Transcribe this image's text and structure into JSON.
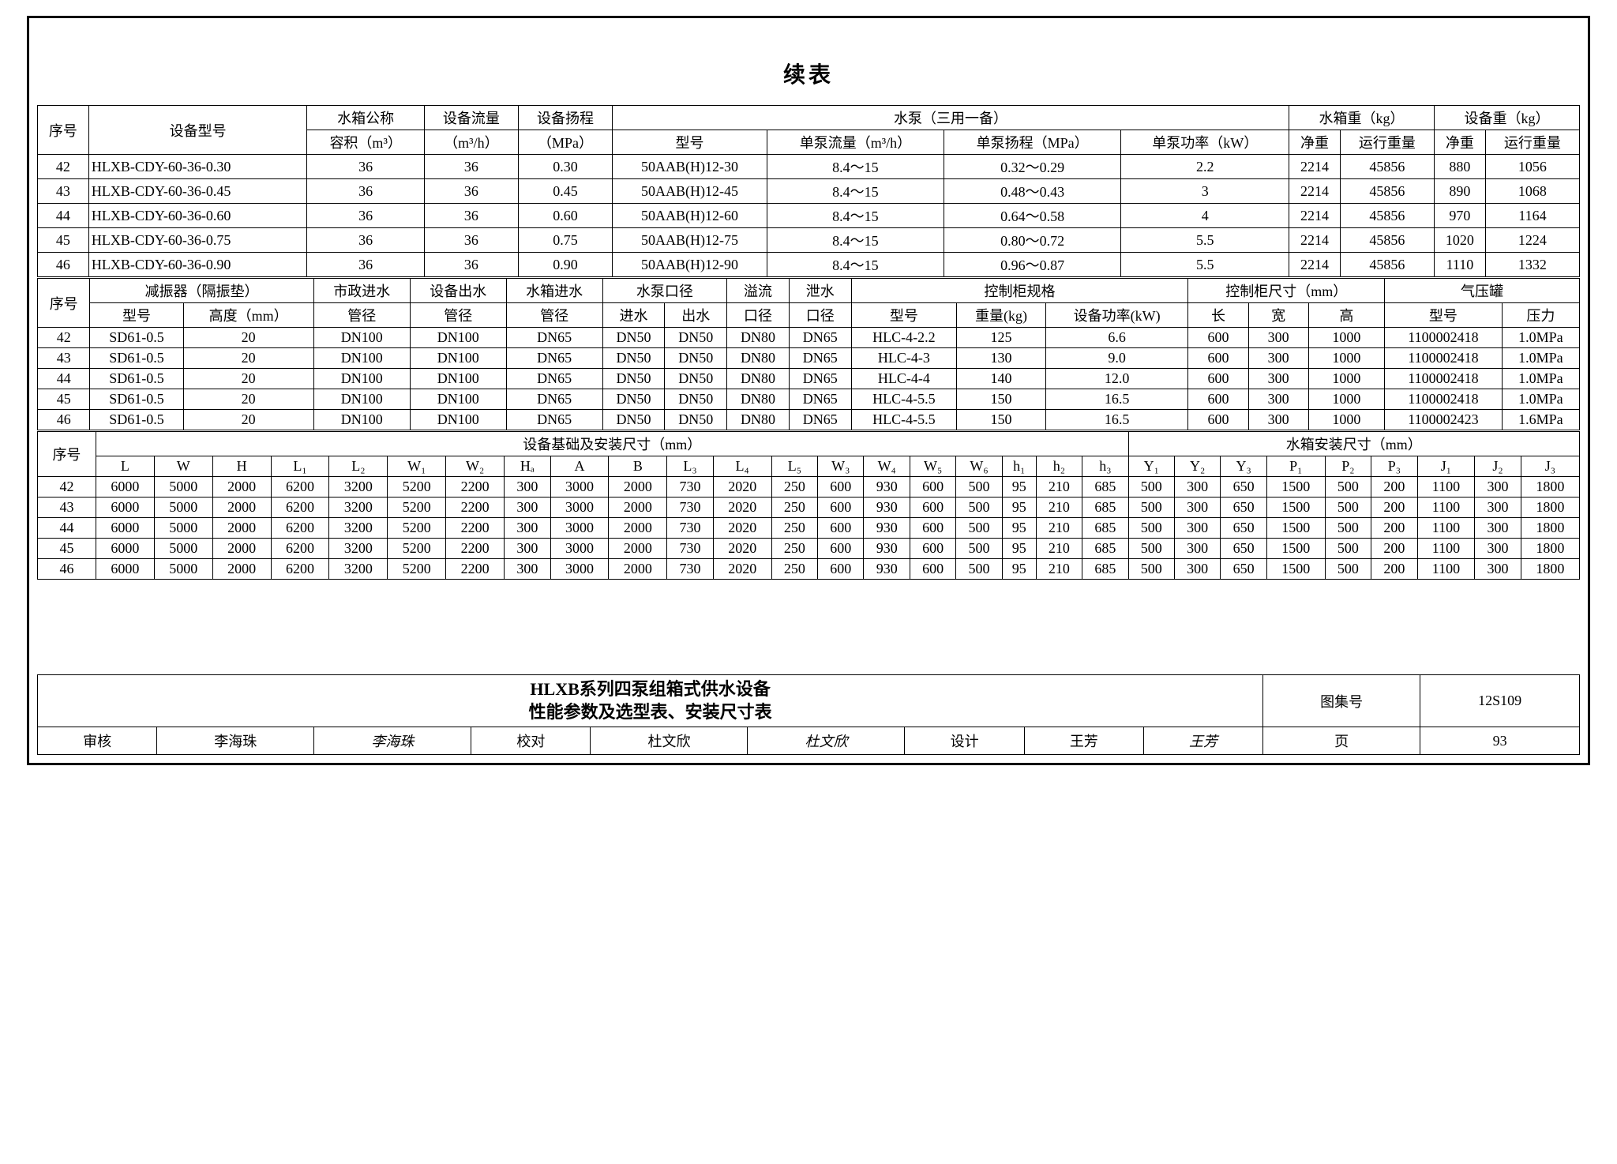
{
  "title": "续表",
  "table1": {
    "headers": {
      "seq": "序号",
      "model": "设备型号",
      "tank_nom": "水箱公称",
      "tank_nom2": "容积（m³）",
      "dev_flow": "设备流量",
      "dev_flow2": "（m³/h）",
      "dev_head": "设备扬程",
      "dev_head2": "（MPa）",
      "pump_group": "水泵（三用一备）",
      "pump_model": "型号",
      "pump_flow": "单泵流量（m³/h）",
      "pump_head": "单泵扬程（MPa）",
      "pump_power": "单泵功率（kW）",
      "tank_wt": "水箱重（kg）",
      "dev_wt": "设备重（kg）",
      "net": "净重",
      "run": "运行重量"
    },
    "rows": [
      {
        "n": "42",
        "m": "HLXB-CDY-60-36-0.30",
        "v": "36",
        "f": "36",
        "h": "0.30",
        "pm": "50AAB(H)12-30",
        "pf": "8.4～15",
        "ph": "0.32～0.29",
        "pp": "2.2",
        "tn": "2214",
        "tr": "45856",
        "dn": "880",
        "dr": "1056"
      },
      {
        "n": "43",
        "m": "HLXB-CDY-60-36-0.45",
        "v": "36",
        "f": "36",
        "h": "0.45",
        "pm": "50AAB(H)12-45",
        "pf": "8.4～15",
        "ph": "0.48～0.43",
        "pp": "3",
        "tn": "2214",
        "tr": "45856",
        "dn": "890",
        "dr": "1068"
      },
      {
        "n": "44",
        "m": "HLXB-CDY-60-36-0.60",
        "v": "36",
        "f": "36",
        "h": "0.60",
        "pm": "50AAB(H)12-60",
        "pf": "8.4～15",
        "ph": "0.64～0.58",
        "pp": "4",
        "tn": "2214",
        "tr": "45856",
        "dn": "970",
        "dr": "1164"
      },
      {
        "n": "45",
        "m": "HLXB-CDY-60-36-0.75",
        "v": "36",
        "f": "36",
        "h": "0.75",
        "pm": "50AAB(H)12-75",
        "pf": "8.4～15",
        "ph": "0.80～0.72",
        "pp": "5.5",
        "tn": "2214",
        "tr": "45856",
        "dn": "1020",
        "dr": "1224"
      },
      {
        "n": "46",
        "m": "HLXB-CDY-60-36-0.90",
        "v": "36",
        "f": "36",
        "h": "0.90",
        "pm": "50AAB(H)12-90",
        "pf": "8.4～15",
        "ph": "0.96～0.87",
        "pp": "5.5",
        "tn": "2214",
        "tr": "45856",
        "dn": "1110",
        "dr": "1332"
      }
    ]
  },
  "table2": {
    "headers": {
      "seq": "序号",
      "damper": "减振器（隔振垫）",
      "d_model": "型号",
      "d_height": "高度（mm）",
      "muni_in": "市政进水",
      "dev_out": "设备出水",
      "tank_in": "水箱进水",
      "pipe": "管径",
      "pump_dia": "水泵口径",
      "in": "进水",
      "out": "出水",
      "overflow": "溢流",
      "dia": "口径",
      "drain": "泄水",
      "cab_spec": "控制柜规格",
      "c_model": "型号",
      "c_wt": "重量(kg)",
      "c_pwr": "设备功率(kW)",
      "cab_dim": "控制柜尺寸（mm）",
      "len": "长",
      "wid": "宽",
      "hgt": "高",
      "air_tank": "气压罐",
      "a_model": "型号",
      "a_press": "压力"
    },
    "rows": [
      {
        "n": "42",
        "dm": "SD61-0.5",
        "dh": "20",
        "mi": "DN100",
        "do": "DN100",
        "ti": "DN65",
        "pi": "DN50",
        "po": "DN50",
        "ov": "DN80",
        "dr": "DN65",
        "cm": "HLC-4-2.2",
        "cw": "125",
        "cp": "6.6",
        "cl": "600",
        "cwi": "300",
        "ch": "1000",
        "am": "1100002418",
        "ap": "1.0MPa"
      },
      {
        "n": "43",
        "dm": "SD61-0.5",
        "dh": "20",
        "mi": "DN100",
        "do": "DN100",
        "ti": "DN65",
        "pi": "DN50",
        "po": "DN50",
        "ov": "DN80",
        "dr": "DN65",
        "cm": "HLC-4-3",
        "cw": "130",
        "cp": "9.0",
        "cl": "600",
        "cwi": "300",
        "ch": "1000",
        "am": "1100002418",
        "ap": "1.0MPa"
      },
      {
        "n": "44",
        "dm": "SD61-0.5",
        "dh": "20",
        "mi": "DN100",
        "do": "DN100",
        "ti": "DN65",
        "pi": "DN50",
        "po": "DN50",
        "ov": "DN80",
        "dr": "DN65",
        "cm": "HLC-4-4",
        "cw": "140",
        "cp": "12.0",
        "cl": "600",
        "cwi": "300",
        "ch": "1000",
        "am": "1100002418",
        "ap": "1.0MPa"
      },
      {
        "n": "45",
        "dm": "SD61-0.5",
        "dh": "20",
        "mi": "DN100",
        "do": "DN100",
        "ti": "DN65",
        "pi": "DN50",
        "po": "DN50",
        "ov": "DN80",
        "dr": "DN65",
        "cm": "HLC-4-5.5",
        "cw": "150",
        "cp": "16.5",
        "cl": "600",
        "cwi": "300",
        "ch": "1000",
        "am": "1100002418",
        "ap": "1.0MPa"
      },
      {
        "n": "46",
        "dm": "SD61-0.5",
        "dh": "20",
        "mi": "DN100",
        "do": "DN100",
        "ti": "DN65",
        "pi": "DN50",
        "po": "DN50",
        "ov": "DN80",
        "dr": "DN65",
        "cm": "HLC-4-5.5",
        "cw": "150",
        "cp": "16.5",
        "cl": "600",
        "cwi": "300",
        "ch": "1000",
        "am": "1100002423",
        "ap": "1.6MPa"
      }
    ]
  },
  "table3": {
    "headers": {
      "seq": "序号",
      "found": "设备基础及安装尺寸（mm）",
      "tank_dim": "水箱安装尺寸（mm）",
      "cols": [
        "L",
        "W",
        "H",
        "L₁",
        "L₂",
        "W₁",
        "W₂",
        "Hₐ",
        "A",
        "B",
        "L₃",
        "L₄",
        "L₅",
        "W₃",
        "W₄",
        "W₅",
        "W₆",
        "h₁",
        "h₂",
        "h₃",
        "Y₁",
        "Y₂",
        "Y₃",
        "P₁",
        "P₂",
        "P₃",
        "J₁",
        "J₂",
        "J₃"
      ]
    },
    "rows": [
      {
        "n": "42",
        "v": [
          "6000",
          "5000",
          "2000",
          "6200",
          "3200",
          "5200",
          "2200",
          "300",
          "3000",
          "2000",
          "730",
          "2020",
          "250",
          "600",
          "930",
          "600",
          "500",
          "95",
          "210",
          "685",
          "500",
          "300",
          "650",
          "1500",
          "500",
          "200",
          "1100",
          "300",
          "1800"
        ]
      },
      {
        "n": "43",
        "v": [
          "6000",
          "5000",
          "2000",
          "6200",
          "3200",
          "5200",
          "2200",
          "300",
          "3000",
          "2000",
          "730",
          "2020",
          "250",
          "600",
          "930",
          "600",
          "500",
          "95",
          "210",
          "685",
          "500",
          "300",
          "650",
          "1500",
          "500",
          "200",
          "1100",
          "300",
          "1800"
        ]
      },
      {
        "n": "44",
        "v": [
          "6000",
          "5000",
          "2000",
          "6200",
          "3200",
          "5200",
          "2200",
          "300",
          "3000",
          "2000",
          "730",
          "2020",
          "250",
          "600",
          "930",
          "600",
          "500",
          "95",
          "210",
          "685",
          "500",
          "300",
          "650",
          "1500",
          "500",
          "200",
          "1100",
          "300",
          "1800"
        ]
      },
      {
        "n": "45",
        "v": [
          "6000",
          "5000",
          "2000",
          "6200",
          "3200",
          "5200",
          "2200",
          "300",
          "3000",
          "2000",
          "730",
          "2020",
          "250",
          "600",
          "930",
          "600",
          "500",
          "95",
          "210",
          "685",
          "500",
          "300",
          "650",
          "1500",
          "500",
          "200",
          "1100",
          "300",
          "1800"
        ]
      },
      {
        "n": "46",
        "v": [
          "6000",
          "5000",
          "2000",
          "6200",
          "3200",
          "5200",
          "2200",
          "300",
          "3000",
          "2000",
          "730",
          "2020",
          "250",
          "600",
          "930",
          "600",
          "500",
          "95",
          "210",
          "685",
          "500",
          "300",
          "650",
          "1500",
          "500",
          "200",
          "1100",
          "300",
          "1800"
        ]
      }
    ]
  },
  "footer": {
    "title1": "HLXB系列四泵组箱式供水设备",
    "title2": "性能参数及选型表、安装尺寸表",
    "drawing_label": "图集号",
    "drawing_no": "12S109",
    "review": "审核",
    "reviewer": "李海珠",
    "sig1": "李海珠",
    "check": "校对",
    "checker": "杜文欣",
    "sig2": "杜文欣",
    "design": "设计",
    "designer": "王芳",
    "sig3": "王芳",
    "page_label": "页",
    "page_no": "93"
  }
}
